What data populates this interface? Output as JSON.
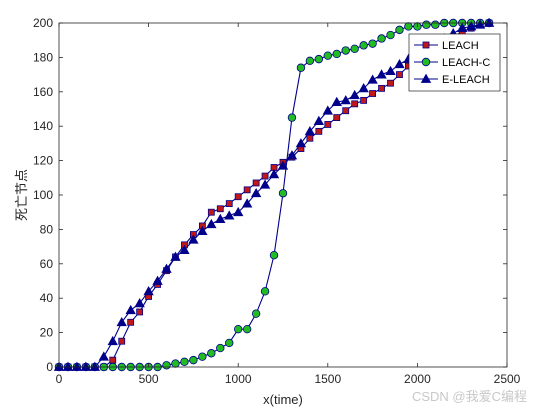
{
  "chart_data": {
    "type": "line",
    "xlabel": "x(time)",
    "ylabel": "死亡节点",
    "xlim": [
      0,
      2500
    ],
    "ylim": [
      0,
      200
    ],
    "xticks": [
      0,
      500,
      1000,
      1500,
      2000,
      2500
    ],
    "yticks": [
      0,
      20,
      40,
      60,
      80,
      100,
      120,
      140,
      160,
      180,
      200
    ],
    "grid": false,
    "legend_position": "top-right",
    "series": [
      {
        "name": "LEACH",
        "color": "#00008b",
        "marker": "square",
        "marker_fill": "#c01818",
        "x": [
          0,
          50,
          100,
          150,
          200,
          250,
          300,
          350,
          400,
          450,
          500,
          550,
          600,
          650,
          700,
          750,
          800,
          850,
          900,
          950,
          1000,
          1050,
          1100,
          1150,
          1200,
          1250,
          1300,
          1350,
          1400,
          1450,
          1500,
          1550,
          1600,
          1650,
          1700,
          1750,
          1800,
          1850,
          1900,
          1950,
          2000,
          2050,
          2100,
          2150,
          2200,
          2250,
          2300,
          2350,
          2400
        ],
        "y": [
          0,
          0,
          0,
          0,
          0,
          0,
          4,
          15,
          26,
          32,
          41,
          48,
          56,
          64,
          71,
          77,
          82,
          90,
          92,
          95,
          99,
          103,
          107,
          111,
          116,
          119,
          122,
          127,
          133,
          137,
          141,
          145,
          149,
          153,
          155,
          159,
          162,
          165,
          170,
          175,
          180,
          183,
          186,
          190,
          192,
          195,
          197,
          199,
          200
        ]
      },
      {
        "name": "LEACH-C",
        "color": "#00008b",
        "marker": "circle",
        "marker_fill": "#22bb22",
        "x": [
          0,
          50,
          100,
          150,
          200,
          250,
          300,
          350,
          400,
          450,
          500,
          550,
          600,
          650,
          700,
          750,
          800,
          850,
          900,
          950,
          1000,
          1050,
          1100,
          1150,
          1200,
          1250,
          1300,
          1350,
          1400,
          1450,
          1500,
          1550,
          1600,
          1650,
          1700,
          1750,
          1800,
          1850,
          1900,
          1950,
          2000,
          2050,
          2100,
          2150,
          2200,
          2250,
          2300,
          2350,
          2400
        ],
        "y": [
          0,
          0,
          0,
          0,
          0,
          0,
          0,
          0,
          0,
          0,
          0,
          0,
          1,
          2,
          3,
          4,
          6,
          8,
          11,
          14,
          22,
          22,
          31,
          44,
          65,
          101,
          145,
          174,
          178,
          179,
          181,
          182,
          184,
          185,
          187,
          188,
          191,
          193,
          196,
          198,
          198,
          199,
          199,
          200,
          200,
          200,
          200,
          200,
          200
        ]
      },
      {
        "name": "E-LEACH",
        "color": "#00008b",
        "marker": "triangle",
        "marker_fill": "#00008b",
        "x": [
          0,
          50,
          100,
          150,
          200,
          250,
          300,
          350,
          400,
          450,
          500,
          550,
          600,
          650,
          700,
          750,
          800,
          850,
          900,
          950,
          1000,
          1050,
          1100,
          1150,
          1200,
          1250,
          1300,
          1350,
          1400,
          1450,
          1500,
          1550,
          1600,
          1650,
          1700,
          1750,
          1800,
          1850,
          1900,
          1950,
          2000,
          2050,
          2100,
          2150,
          2200,
          2250,
          2300,
          2350,
          2400
        ],
        "y": [
          0,
          0,
          0,
          0,
          0,
          6,
          15,
          26,
          33,
          37,
          44,
          50,
          57,
          64,
          68,
          74,
          79,
          83,
          86,
          88,
          90,
          95,
          101,
          106,
          112,
          117,
          123,
          130,
          137,
          143,
          149,
          154,
          155,
          158,
          162,
          167,
          170,
          172,
          176,
          179,
          182,
          185,
          188,
          191,
          194,
          197,
          198,
          199,
          200
        ]
      }
    ]
  },
  "watermark": "CSDN @我爱C编程"
}
